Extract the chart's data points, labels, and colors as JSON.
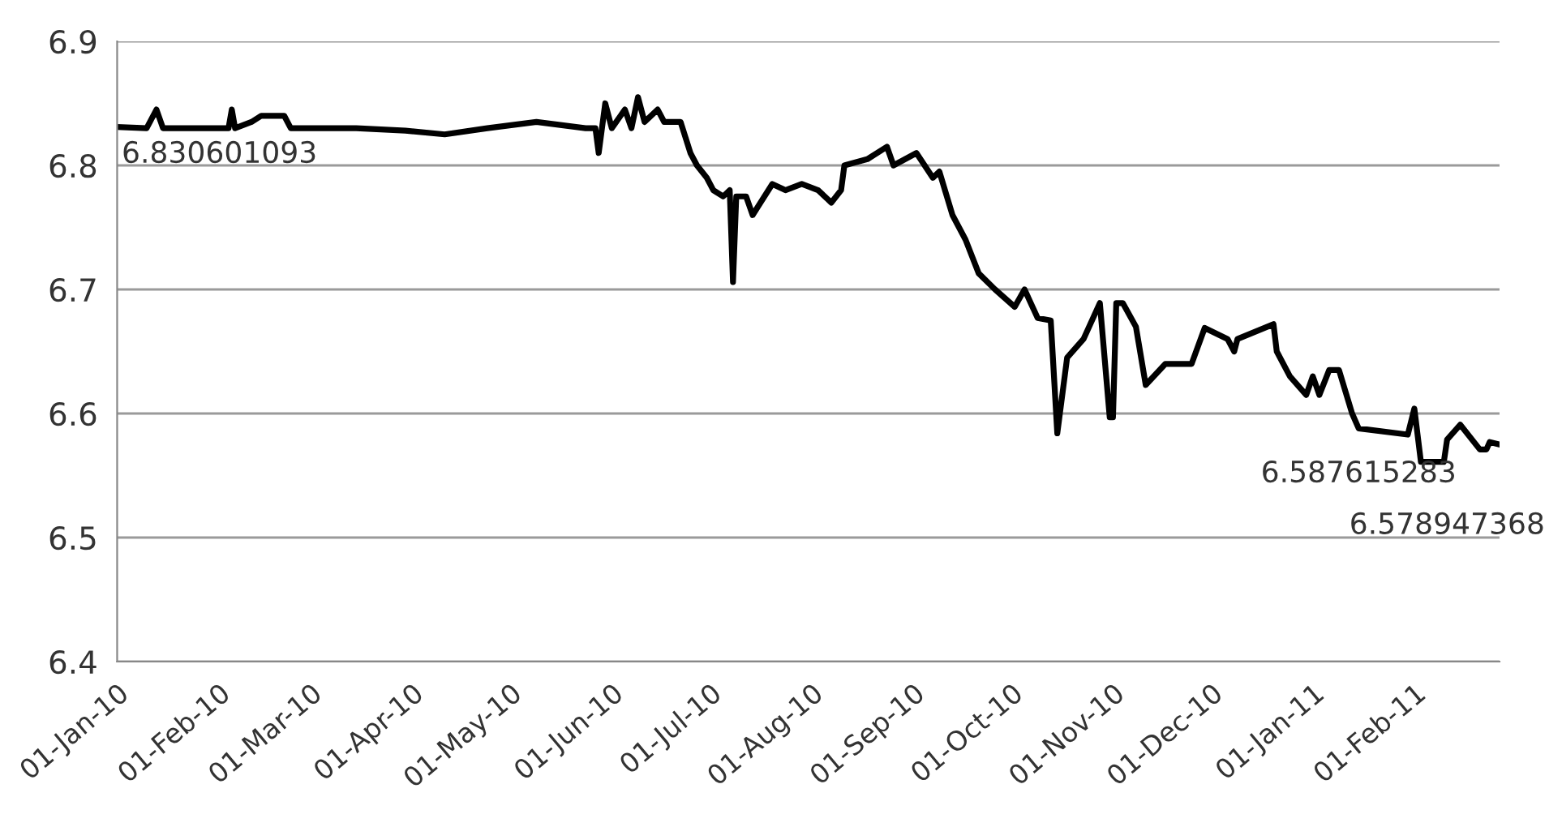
{
  "chart_data": {
    "type": "line",
    "x": [
      "2010-01-01",
      "2010-01-10",
      "2010-01-13",
      "2010-01-15",
      "2010-02-04",
      "2010-02-05",
      "2010-02-06",
      "2010-02-11",
      "2010-02-14",
      "2010-02-21",
      "2010-02-23",
      "2010-03-15",
      "2010-03-30",
      "2010-04-11",
      "2010-04-24",
      "2010-05-09",
      "2010-05-24",
      "2010-05-27",
      "2010-05-28",
      "2010-05-30",
      "2010-06-01",
      "2010-06-05",
      "2010-06-07",
      "2010-06-09",
      "2010-06-11",
      "2010-06-15",
      "2010-06-17",
      "2010-06-22",
      "2010-06-25",
      "2010-06-27",
      "2010-06-30",
      "2010-07-02",
      "2010-07-05",
      "2010-07-07",
      "2010-07-08",
      "2010-07-09",
      "2010-07-12",
      "2010-07-14",
      "2010-07-20",
      "2010-07-24",
      "2010-07-29",
      "2010-08-03",
      "2010-08-07",
      "2010-08-10",
      "2010-08-11",
      "2010-08-18",
      "2010-08-24",
      "2010-08-26",
      "2010-09-02",
      "2010-09-07",
      "2010-09-09",
      "2010-09-13",
      "2010-09-17",
      "2010-09-21",
      "2010-09-26",
      "2010-10-02",
      "2010-10-05",
      "2010-10-09",
      "2010-10-13",
      "2010-10-15",
      "2010-10-18",
      "2010-10-23",
      "2010-10-28",
      "2010-10-31",
      "2010-11-01",
      "2010-11-02",
      "2010-11-04",
      "2010-11-08",
      "2010-11-11",
      "2010-11-17",
      "2010-11-25",
      "2010-11-29",
      "2010-12-06",
      "2010-12-08",
      "2010-12-09",
      "2010-12-20",
      "2010-12-21",
      "2010-12-25",
      "2010-12-30",
      "2011-01-01",
      "2011-01-03",
      "2011-01-06",
      "2011-01-09",
      "2011-01-13",
      "2011-01-15",
      "2011-01-30",
      "2011-02-01",
      "2011-02-03",
      "2011-02-10",
      "2011-02-11",
      "2011-02-15",
      "2011-02-21",
      "2011-02-23",
      "2011-02-24",
      "2011-02-27"
    ],
    "series": [
      {
        "color": "#000000",
        "values": [
          6.831,
          6.83,
          6.845,
          6.83,
          6.83,
          6.845,
          6.83,
          6.835,
          6.84,
          6.84,
          6.83,
          6.83,
          6.828,
          6.825,
          6.83,
          6.835,
          6.83,
          6.83,
          6.81,
          6.85,
          6.83,
          6.845,
          6.83,
          6.855,
          6.835,
          6.845,
          6.835,
          6.835,
          6.81,
          6.8,
          6.79,
          6.78,
          6.775,
          6.78,
          6.706,
          6.775,
          6.775,
          6.76,
          6.785,
          6.78,
          6.785,
          6.78,
          6.77,
          6.78,
          6.8,
          6.805,
          6.815,
          6.8,
          6.81,
          6.79,
          6.795,
          6.76,
          6.74,
          6.713,
          6.7,
          6.686,
          6.7,
          6.677,
          6.675,
          6.584,
          6.645,
          6.66,
          6.689,
          6.597,
          6.597,
          6.689,
          6.689,
          6.67,
          6.623,
          6.64,
          6.64,
          6.669,
          6.66,
          6.65,
          6.66,
          6.672,
          6.65,
          6.63,
          6.615,
          6.63,
          6.615,
          6.635,
          6.635,
          6.6,
          6.588,
          6.583,
          6.604,
          6.561,
          6.561,
          6.579,
          6.591,
          6.571,
          6.571,
          6.577,
          6.575
        ]
      }
    ],
    "xlim": [
      "2010-01-01",
      "2011-02-27"
    ],
    "xticks": [
      {
        "value": "2010-01-01",
        "label": "01-Jan-10"
      },
      {
        "value": "2010-02-01",
        "label": "01-Feb-10"
      },
      {
        "value": "2010-03-01",
        "label": "01-Mar-10"
      },
      {
        "value": "2010-04-01",
        "label": "01-Apr-10"
      },
      {
        "value": "2010-05-01",
        "label": "01-May-10"
      },
      {
        "value": "2010-06-01",
        "label": "01-Jun-10"
      },
      {
        "value": "2010-07-01",
        "label": "01-Jul-10"
      },
      {
        "value": "2010-08-01",
        "label": "01-Aug-10"
      },
      {
        "value": "2010-09-01",
        "label": "01-Sep-10"
      },
      {
        "value": "2010-10-01",
        "label": "01-Oct-10"
      },
      {
        "value": "2010-11-01",
        "label": "01-Nov-10"
      },
      {
        "value": "2010-12-01",
        "label": "01-Dec-10"
      },
      {
        "value": "2011-01-01",
        "label": "01-Jan-11"
      },
      {
        "value": "2011-02-01",
        "label": "01-Feb-11"
      }
    ],
    "ylim": [
      6.4,
      6.9
    ],
    "yticks": [
      6.4,
      6.5,
      6.6,
      6.7,
      6.8,
      6.9
    ],
    "grid": "y",
    "marker": "none",
    "line_style": "solid",
    "annotations": [
      {
        "text": "6.830601093",
        "x": "2010-01-01",
        "y": 6.831
      },
      {
        "text": "6.587615283",
        "x": "2011-01-15",
        "y": 6.588
      },
      {
        "text": "6.578947368",
        "x": "2011-02-11",
        "y": 6.579
      }
    ]
  }
}
